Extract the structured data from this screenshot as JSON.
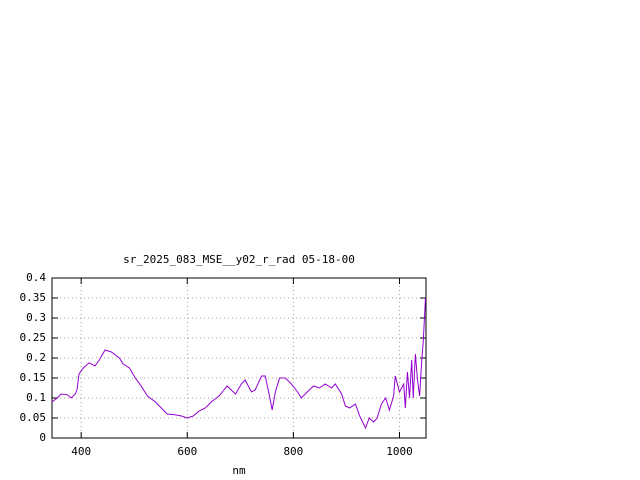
{
  "chart_data": {
    "type": "line",
    "title": "sr_2025_083_MSE__y02_r_rad 05-18-00",
    "x_label": "nm",
    "xlim": [
      345,
      1050
    ],
    "ylim": [
      0,
      0.4
    ],
    "xticks": [
      400,
      600,
      800,
      1000
    ],
    "yticks": [
      0,
      0.05,
      0.1,
      0.15,
      0.2,
      0.25,
      0.3,
      0.35,
      0.4
    ],
    "grid": true,
    "series": [
      {
        "color": "#9400d3",
        "x": [
          345,
          355,
          362,
          374,
          381,
          389,
          392,
          396,
          404,
          415,
          426,
          434,
          445,
          457,
          472,
          479,
          491,
          502,
          513,
          525,
          540,
          551,
          562,
          577,
          589,
          600,
          611,
          623,
          634,
          645,
          660,
          675,
          683,
          691,
          702,
          709,
          721,
          728,
          740,
          747,
          755,
          760,
          766,
          774,
          785,
          796,
          808,
          815,
          826,
          838,
          849,
          860,
          872,
          879,
          891,
          898,
          906,
          917,
          925,
          936,
          943,
          951,
          958,
          966,
          974,
          981,
          989,
          992,
          1000,
          1008,
          1011,
          1015,
          1019,
          1023,
          1026,
          1030,
          1034,
          1038,
          1042,
          1045,
          1049
        ],
        "values": [
          0.09,
          0.1,
          0.11,
          0.108,
          0.1,
          0.11,
          0.12,
          0.16,
          0.175,
          0.188,
          0.18,
          0.195,
          0.22,
          0.215,
          0.2,
          0.185,
          0.175,
          0.15,
          0.13,
          0.105,
          0.09,
          0.075,
          0.06,
          0.058,
          0.055,
          0.05,
          0.055,
          0.068,
          0.075,
          0.09,
          0.105,
          0.13,
          0.12,
          0.11,
          0.135,
          0.145,
          0.115,
          0.12,
          0.155,
          0.155,
          0.105,
          0.07,
          0.115,
          0.15,
          0.15,
          0.135,
          0.115,
          0.1,
          0.115,
          0.13,
          0.125,
          0.135,
          0.125,
          0.135,
          0.11,
          0.08,
          0.075,
          0.085,
          0.055,
          0.025,
          0.05,
          0.04,
          0.05,
          0.085,
          0.1,
          0.07,
          0.105,
          0.155,
          0.115,
          0.135,
          0.075,
          0.165,
          0.1,
          0.195,
          0.1,
          0.21,
          0.145,
          0.105,
          0.195,
          0.245,
          0.35
        ]
      }
    ]
  }
}
